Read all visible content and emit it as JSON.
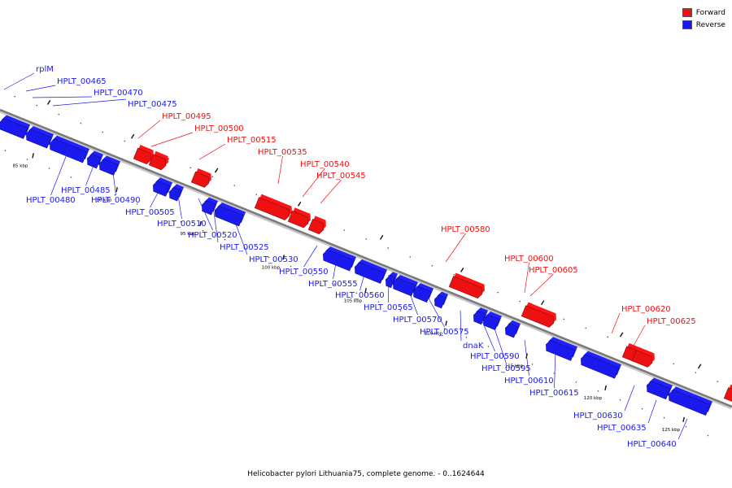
{
  "legend": {
    "forward": {
      "label": "Forward",
      "color": "#ee1111"
    },
    "reverse": {
      "label": "Reverse",
      "color": "#1a1aee"
    }
  },
  "caption": "Helicobacter pylori Lithuania75, complete genome. - 0..1624644",
  "ticks": [
    "85 kbp",
    "90 kbp",
    "95 kbp",
    "100 kbp",
    "105 kbp",
    "110 kbp",
    "115 kbp",
    "120 kbp",
    "125 kbp"
  ],
  "genes": [
    {
      "name": "rplM",
      "strand": "reverse"
    },
    {
      "name": "HPLT_00465",
      "strand": "reverse"
    },
    {
      "name": "HPLT_00470",
      "strand": "reverse"
    },
    {
      "name": "HPLT_00475",
      "strand": "reverse"
    },
    {
      "name": "HPLT_00480",
      "strand": "reverse"
    },
    {
      "name": "HPLT_00485",
      "strand": "reverse"
    },
    {
      "name": "HPLT_00490",
      "strand": "reverse"
    },
    {
      "name": "HPLT_00495",
      "strand": "forward"
    },
    {
      "name": "HPLT_00500",
      "strand": "forward"
    },
    {
      "name": "HPLT_00505",
      "strand": "reverse"
    },
    {
      "name": "HPLT_00510",
      "strand": "reverse"
    },
    {
      "name": "HPLT_00515",
      "strand": "forward"
    },
    {
      "name": "HPLT_00520",
      "strand": "reverse"
    },
    {
      "name": "HPLT_00525",
      "strand": "reverse"
    },
    {
      "name": "HPLT_00530",
      "strand": "reverse"
    },
    {
      "name": "HPLT_00535",
      "strand": "forward"
    },
    {
      "name": "HPLT_00540",
      "strand": "forward"
    },
    {
      "name": "HPLT_00545",
      "strand": "forward"
    },
    {
      "name": "HPLT_00550",
      "strand": "reverse"
    },
    {
      "name": "HPLT_00555",
      "strand": "reverse"
    },
    {
      "name": "HPLT_00560",
      "strand": "reverse"
    },
    {
      "name": "HPLT_00565",
      "strand": "reverse"
    },
    {
      "name": "HPLT_00570",
      "strand": "reverse"
    },
    {
      "name": "HPLT_00575",
      "strand": "reverse"
    },
    {
      "name": "HPLT_00580",
      "strand": "forward"
    },
    {
      "name": "dnaK",
      "strand": "reverse"
    },
    {
      "name": "HPLT_00590",
      "strand": "reverse"
    },
    {
      "name": "HPLT_00595",
      "strand": "reverse"
    },
    {
      "name": "HPLT_00600",
      "strand": "forward"
    },
    {
      "name": "HPLT_00605",
      "strand": "forward"
    },
    {
      "name": "HPLT_00610",
      "strand": "reverse"
    },
    {
      "name": "HPLT_00615",
      "strand": "reverse"
    },
    {
      "name": "HPLT_00620",
      "strand": "forward"
    },
    {
      "name": "HPLT_00625",
      "strand": "forward"
    },
    {
      "name": "HPLT_00630",
      "strand": "reverse"
    },
    {
      "name": "HPLT_00635",
      "strand": "reverse"
    },
    {
      "name": "HPLT_00640",
      "strand": "reverse"
    }
  ]
}
